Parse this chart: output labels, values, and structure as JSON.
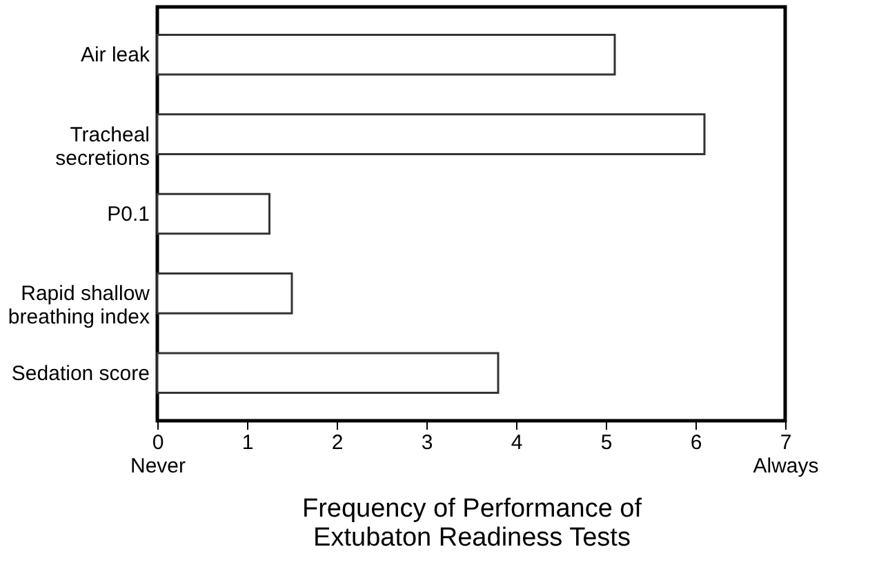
{
  "chart_data": {
    "type": "bar",
    "orientation": "horizontal",
    "categories": [
      "Air leak",
      "Tracheal secretions",
      "P0.1",
      "Rapid shallow breathing index",
      "Sedation score"
    ],
    "values": [
      5.1,
      6.1,
      1.25,
      1.5,
      3.8
    ],
    "color": "#ffffff",
    "xlim": [
      0,
      7
    ],
    "xticks": [
      {
        "value": 0,
        "label": "0\nNever"
      },
      1,
      2,
      3,
      4,
      5,
      6,
      {
        "value": 7,
        "label": "7\nAlways"
      }
    ],
    "xlabel": "Frequency of Performance of Extubaton Readiness Tests",
    "grid": false
  }
}
